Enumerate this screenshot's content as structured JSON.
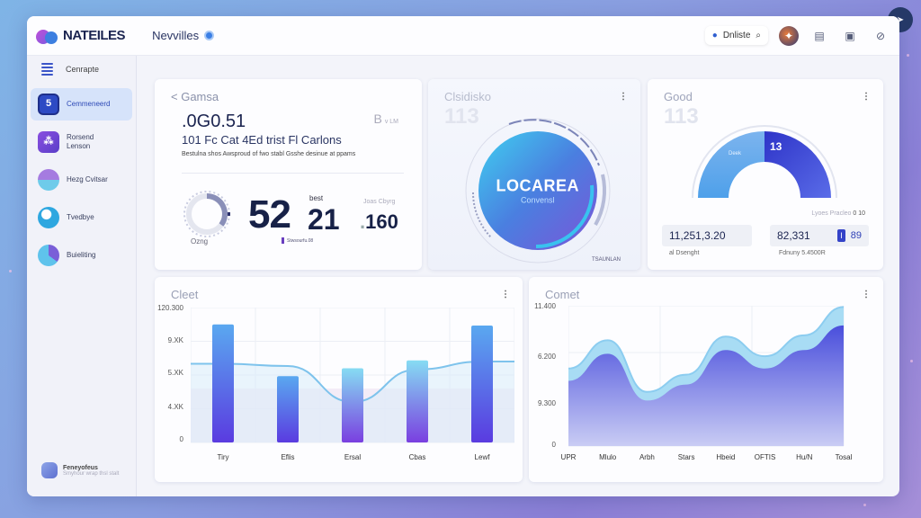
{
  "app": {
    "brand": "NATEILES",
    "nav_title": "Nevvilles"
  },
  "topbar": {
    "search_label": "Dnliste",
    "icons": [
      "search-icon",
      "avatar",
      "book-icon",
      "clipboard-icon",
      "link-icon"
    ]
  },
  "sidebar": {
    "header_label": "Cenrapte",
    "items": [
      {
        "label": "Cemmeneerd",
        "icon": "5",
        "active": true
      },
      {
        "label": "Rorsend Lenson",
        "icon": "",
        "active": false
      },
      {
        "label": "Hezg Cvitsar",
        "icon": "",
        "active": false
      },
      {
        "label": "Tvedbye",
        "icon": "",
        "active": false
      },
      {
        "label": "Buieliting",
        "icon": "",
        "active": false
      }
    ],
    "footer": {
      "title": "Feneyofeus",
      "subtitle": "Smyhour wrap thsl stalt"
    }
  },
  "cards": {
    "summary": {
      "title": "< Gamsa",
      "value": ".0G0.51",
      "subtitle": "101 Fc Cat 4Ed trist Fl Carlons",
      "description": "Bestulna shos Awsproud of fwo stabl Gsshe desinue at ppams",
      "badge_letter": "B",
      "badge_text": "v LM",
      "gauge_label": "Ozng",
      "metric_main": "52",
      "metric_second": "21",
      "metric_second_label": "best",
      "metric_third": "160",
      "metric_third_label": "Joas Cbyrg",
      "legend_text": "Stwsourfu.08"
    },
    "ring": {
      "title": "Clsidisko",
      "ghost_value": "113",
      "center_title": "LOCAREA",
      "center_subtitle": "Convensl",
      "arc_label_top": "Sestuvy Coloarementedes",
      "arc_label_left": "Snsusausaleuntenst",
      "footer": "TSAUNLAN"
    },
    "gauge": {
      "title": "Good",
      "ghost_value": "113",
      "arc_label": "alt aeuoad",
      "right_segment_label": "13",
      "left_segment_label": "Deek",
      "hint": "Lyoes Pracleo",
      "hint_value": "0 10",
      "stat_a_value": "11,251,3.20",
      "stat_a_caption": "al Dsenght",
      "stat_b_value": "82,331",
      "stat_b_pill": "I",
      "stat_b_extra": "89",
      "stat_b_caption": "Fdnuny 5.4500R"
    },
    "bar_chart": {
      "title": "Cleet"
    },
    "area_chart": {
      "title": "Comet"
    }
  },
  "colors": {
    "accent": "#3b55c8",
    "bar_top": "#7ec6f0",
    "bar_bottom": "#6a34d8",
    "area_dark": "#5a5ee0",
    "area_light": "#9fd4f3"
  },
  "chart_data": [
    {
      "type": "bar",
      "title": "Cleet",
      "categories": [
        "Tiry",
        "Eflis",
        "Ersal",
        "Cbas",
        "Lewf"
      ],
      "values": [
        10500,
        5900,
        6600,
        7300,
        10400
      ],
      "overlay_line_values": [
        7000,
        6800,
        3600,
        6500,
        7200
      ],
      "ytick_labels": [
        "120.300",
        "9.XK",
        "5.XK",
        "4.XK",
        "0"
      ],
      "ylim": [
        0,
        12000
      ],
      "grid": true,
      "xlabel": "",
      "ylabel": ""
    },
    {
      "type": "area",
      "title": "Comet",
      "categories": [
        "UPR",
        "Mlulo",
        "Arbh",
        "Stars",
        "Hbeid",
        "OFTIS",
        "Hu/N",
        "Tosal"
      ],
      "series": [
        {
          "name": "outer",
          "values": [
            6300,
            8600,
            4400,
            5800,
            8900,
            7300,
            9000,
            11300
          ]
        },
        {
          "name": "inner",
          "values": [
            5300,
            7500,
            3700,
            5000,
            7800,
            6300,
            7800,
            9800
          ]
        }
      ],
      "ytick_labels": [
        "11.400",
        "6.200",
        "9.300",
        "0"
      ],
      "ylim": [
        0,
        11400
      ],
      "grid": true,
      "xlabel": "",
      "ylabel": ""
    }
  ]
}
